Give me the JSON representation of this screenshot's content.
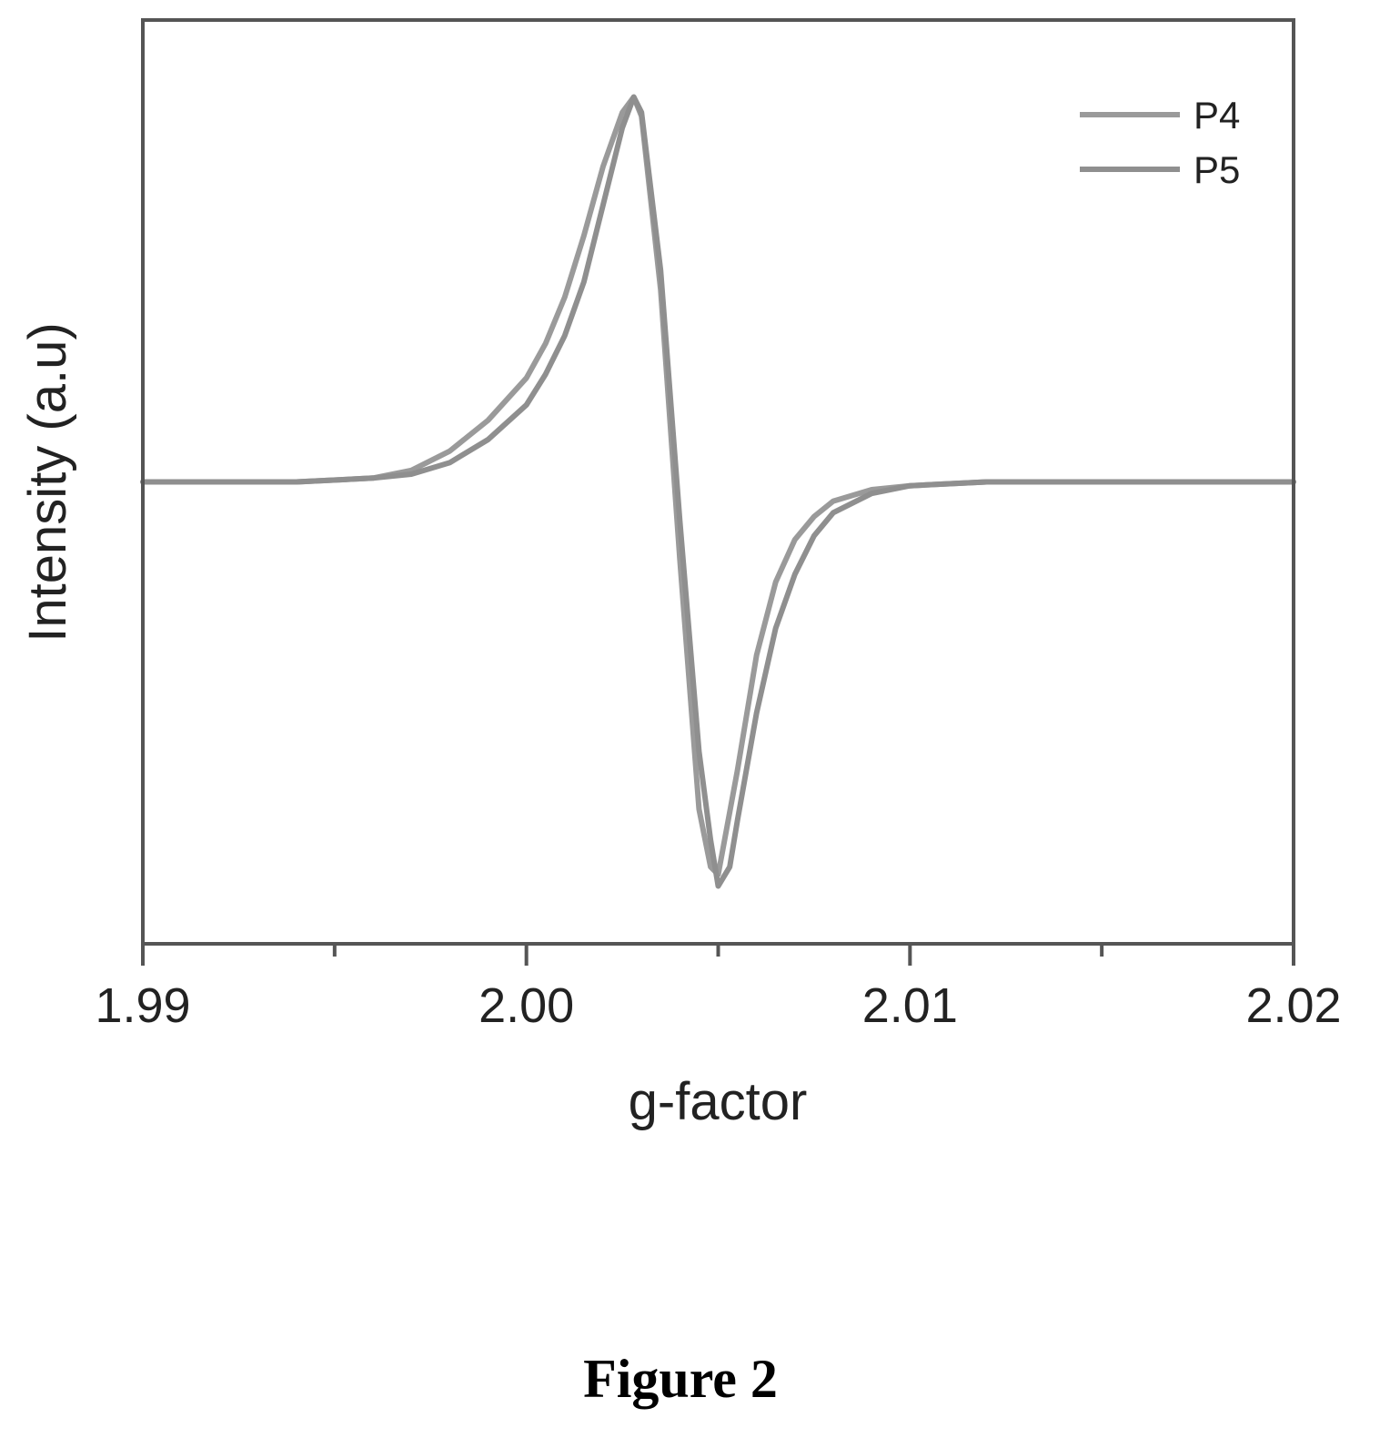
{
  "caption": "Figure 2",
  "chart_data": {
    "type": "line",
    "title": "",
    "xlabel": "g-factor",
    "ylabel": "Intensity (a.u)",
    "xlim": [
      1.99,
      2.02
    ],
    "ylim": [
      -1.2,
      1.2
    ],
    "xticks": [
      1.99,
      2.0,
      2.01,
      2.02
    ],
    "xtick_labels": [
      "1.99",
      "2.00",
      "2.01",
      "2.02"
    ],
    "yticks_shown": false,
    "grid": false,
    "legend_position": "top-right",
    "series": [
      {
        "name": "P4",
        "color": "#9a9a9a",
        "x": [
          1.99,
          1.994,
          1.996,
          1.997,
          1.998,
          1.999,
          2.0,
          2.0005,
          2.001,
          2.0015,
          2.002,
          2.0025,
          2.0028,
          2.003,
          2.0035,
          2.004,
          2.0045,
          2.0048,
          2.005,
          2.0055,
          2.006,
          2.0065,
          2.007,
          2.0075,
          2.008,
          2.009,
          2.01,
          2.012,
          2.015,
          2.02
        ],
        "y": [
          0.0,
          0.0,
          0.01,
          0.03,
          0.08,
          0.16,
          0.27,
          0.36,
          0.48,
          0.64,
          0.82,
          0.96,
          1.0,
          0.95,
          0.5,
          -0.2,
          -0.85,
          -1.0,
          -1.02,
          -0.75,
          -0.45,
          -0.26,
          -0.15,
          -0.09,
          -0.05,
          -0.02,
          -0.01,
          0.0,
          0.0,
          0.0
        ]
      },
      {
        "name": "P5",
        "color": "#8f8f8f",
        "x": [
          1.99,
          1.994,
          1.996,
          1.997,
          1.998,
          1.999,
          2.0,
          2.0005,
          2.001,
          2.0015,
          2.002,
          2.0025,
          2.0028,
          2.003,
          2.0035,
          2.004,
          2.0045,
          2.0048,
          2.005,
          2.0053,
          2.0055,
          2.006,
          2.0065,
          2.007,
          2.0075,
          2.008,
          2.009,
          2.01,
          2.012,
          2.015,
          2.02
        ],
        "y": [
          0.0,
          0.0,
          0.01,
          0.02,
          0.05,
          0.11,
          0.2,
          0.28,
          0.38,
          0.52,
          0.72,
          0.92,
          1.0,
          0.96,
          0.55,
          -0.1,
          -0.7,
          -0.93,
          -1.05,
          -1.0,
          -0.88,
          -0.6,
          -0.38,
          -0.24,
          -0.14,
          -0.08,
          -0.03,
          -0.01,
          0.0,
          0.0,
          0.0
        ]
      }
    ]
  }
}
